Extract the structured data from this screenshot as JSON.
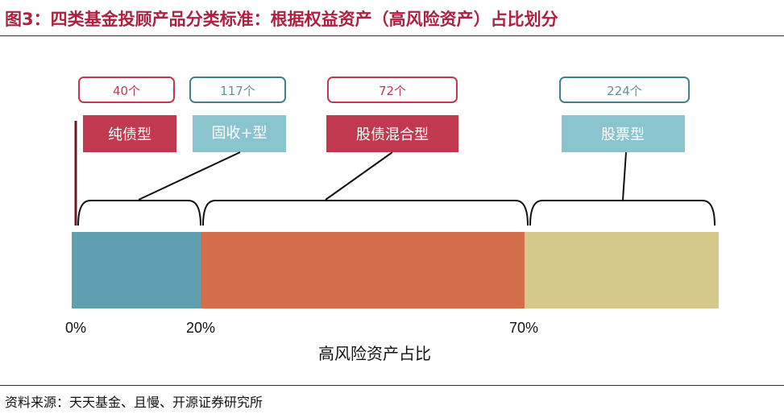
{
  "title": "图3：四类基金投顾产品分类标准：根据权益资产（高风险资产）占比划分",
  "categories": [
    {
      "name": "纯债型",
      "count": "40个",
      "fill": "#c0394e",
      "border": "#c0394e",
      "count_color": "#c0394e"
    },
    {
      "name": "固收+型",
      "count": "117个",
      "fill": "#8ac4cf",
      "border": "#3f7f8e",
      "count_color": "#5f8fa0"
    },
    {
      "name": "股债混合型",
      "count": "72个",
      "fill": "#c0394e",
      "border": "#c0394e",
      "count_color": "#c0394e"
    },
    {
      "name": "股票型",
      "count": "224个",
      "fill": "#8ac4cf",
      "border": "#3f7f8e",
      "count_color": "#5f8fa0"
    }
  ],
  "bar_segments": [
    {
      "from": 0,
      "to": 20,
      "color": "#5f9fb0"
    },
    {
      "from": 20,
      "to": 70,
      "color": "#d46d4a"
    },
    {
      "from": 70,
      "to": 100,
      "color": "#d4c88a"
    }
  ],
  "ticks": [
    "0%",
    "20%",
    "70%"
  ],
  "axis_label": "高风险资产占比",
  "source": "资料来源：天天基金、且慢、开源证券研究所"
}
